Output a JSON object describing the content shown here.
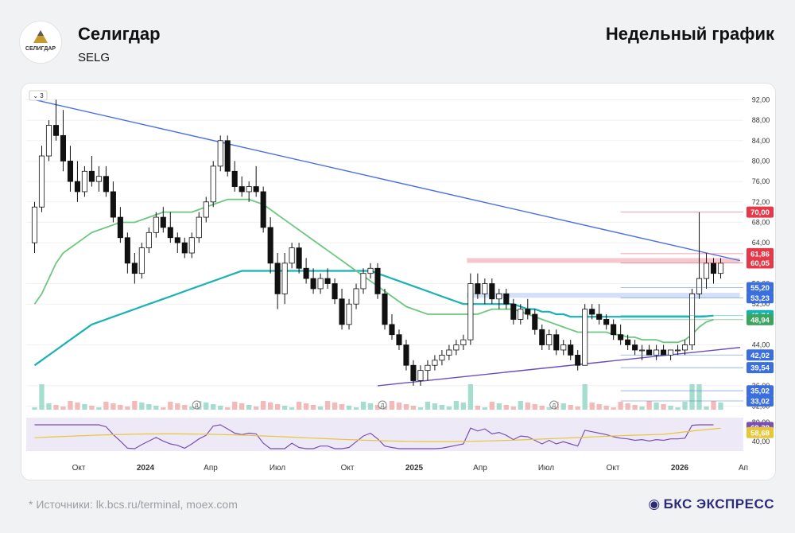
{
  "header": {
    "logo_text": "СЕЛИГДАР",
    "company": "Селигдар",
    "ticker": "SELG",
    "chart_type": "Недельный график",
    "interval_badge": "3"
  },
  "footer": {
    "sources": "*  Источники: lk.bcs.ru/terminal, moex.com",
    "brand": "БКС ЭКСПРЕСС"
  },
  "chart_data": {
    "type": "candlestick",
    "title": "Селигдар (SELG) — Недельный график",
    "y_ticks": [
      "92,00",
      "88,00",
      "84,00",
      "80,00",
      "76,00",
      "72,00",
      "68,00",
      "64,00",
      "56,00",
      "52,00",
      "44,00",
      "36,00",
      "32,00"
    ],
    "ylim": [
      31,
      93
    ],
    "x_ticks": [
      "Окт",
      "2024",
      "Апр",
      "Июл",
      "Окт",
      "2025",
      "Апр",
      "Июл",
      "Окт",
      "2026",
      "Ап"
    ],
    "price_labels": [
      {
        "text": "70,00",
        "value": 70.0,
        "color": "#e5394a"
      },
      {
        "text": "61,86",
        "value": 61.86,
        "color": "#e5394a"
      },
      {
        "text": "60,05",
        "value": 60.05,
        "color": "#e5394a"
      },
      {
        "text": "55,20",
        "value": 55.2,
        "color": "#3b6fe0"
      },
      {
        "text": "53,23",
        "value": 53.23,
        "color": "#3b6fe0"
      },
      {
        "text": "49,74",
        "value": 49.74,
        "color": "#16b2b4"
      },
      {
        "text": "48,94",
        "value": 48.94,
        "color": "#3aa55c"
      },
      {
        "text": "42,02",
        "value": 42.02,
        "color": "#3b6fe0"
      },
      {
        "text": "39,54",
        "value": 39.54,
        "color": "#3b6fe0"
      },
      {
        "text": "35,02",
        "value": 35.02,
        "color": "#3b6fe0"
      },
      {
        "text": "33,02",
        "value": 33.02,
        "color": "#3b6fe0"
      }
    ],
    "rsi": {
      "ticks": [
        "80,00",
        "40,00"
      ],
      "labels": [
        {
          "text": "69,38",
          "value": 69.38,
          "color": "#7a4fb4"
        },
        {
          "text": "58,68",
          "value": 58.68,
          "color": "#e8c63a"
        }
      ]
    },
    "dividend_markers": [
      "Д",
      "Д",
      "Д"
    ],
    "candles": [
      {
        "o": 64,
        "h": 72,
        "l": 62,
        "c": 71
      },
      {
        "o": 71,
        "h": 83,
        "l": 70,
        "c": 81
      },
      {
        "o": 81,
        "h": 88,
        "l": 80,
        "c": 87
      },
      {
        "o": 87,
        "h": 92,
        "l": 84,
        "c": 85
      },
      {
        "o": 85,
        "h": 90,
        "l": 78,
        "c": 80
      },
      {
        "o": 80,
        "h": 83,
        "l": 74,
        "c": 76
      },
      {
        "o": 76,
        "h": 80,
        "l": 72,
        "c": 74
      },
      {
        "o": 74,
        "h": 79,
        "l": 73,
        "c": 78
      },
      {
        "o": 78,
        "h": 81,
        "l": 75,
        "c": 76
      },
      {
        "o": 76,
        "h": 79,
        "l": 74,
        "c": 77
      },
      {
        "o": 77,
        "h": 79,
        "l": 73,
        "c": 74
      },
      {
        "o": 74,
        "h": 76,
        "l": 68,
        "c": 69
      },
      {
        "o": 69,
        "h": 71,
        "l": 64,
        "c": 65
      },
      {
        "o": 65,
        "h": 66,
        "l": 58,
        "c": 60
      },
      {
        "o": 60,
        "h": 62,
        "l": 56,
        "c": 58
      },
      {
        "o": 58,
        "h": 64,
        "l": 57,
        "c": 63
      },
      {
        "o": 63,
        "h": 67,
        "l": 62,
        "c": 66
      },
      {
        "o": 66,
        "h": 70,
        "l": 65,
        "c": 69
      },
      {
        "o": 69,
        "h": 71,
        "l": 66,
        "c": 67
      },
      {
        "o": 67,
        "h": 70,
        "l": 64,
        "c": 65
      },
      {
        "o": 65,
        "h": 66,
        "l": 62,
        "c": 64
      },
      {
        "o": 64,
        "h": 65,
        "l": 61,
        "c": 62
      },
      {
        "o": 62,
        "h": 66,
        "l": 61,
        "c": 65
      },
      {
        "o": 65,
        "h": 70,
        "l": 64,
        "c": 69
      },
      {
        "o": 69,
        "h": 73,
        "l": 68,
        "c": 72
      },
      {
        "o": 72,
        "h": 80,
        "l": 71,
        "c": 79
      },
      {
        "o": 79,
        "h": 85,
        "l": 78,
        "c": 84
      },
      {
        "o": 84,
        "h": 85,
        "l": 77,
        "c": 78
      },
      {
        "o": 78,
        "h": 80,
        "l": 74,
        "c": 75
      },
      {
        "o": 75,
        "h": 77,
        "l": 73,
        "c": 74
      },
      {
        "o": 74,
        "h": 76,
        "l": 72,
        "c": 75
      },
      {
        "o": 75,
        "h": 79,
        "l": 73,
        "c": 74
      },
      {
        "o": 74,
        "h": 75,
        "l": 66,
        "c": 67
      },
      {
        "o": 67,
        "h": 69,
        "l": 58,
        "c": 60
      },
      {
        "o": 60,
        "h": 62,
        "l": 51,
        "c": 54
      },
      {
        "o": 54,
        "h": 62,
        "l": 52,
        "c": 60
      },
      {
        "o": 60,
        "h": 64,
        "l": 59,
        "c": 63
      },
      {
        "o": 63,
        "h": 64,
        "l": 58,
        "c": 59
      },
      {
        "o": 59,
        "h": 61,
        "l": 56,
        "c": 57
      },
      {
        "o": 57,
        "h": 59,
        "l": 54,
        "c": 55
      },
      {
        "o": 55,
        "h": 58,
        "l": 54,
        "c": 57
      },
      {
        "o": 57,
        "h": 59,
        "l": 55,
        "c": 56
      },
      {
        "o": 56,
        "h": 57,
        "l": 52,
        "c": 53
      },
      {
        "o": 53,
        "h": 55,
        "l": 47,
        "c": 48
      },
      {
        "o": 48,
        "h": 53,
        "l": 47,
        "c": 52
      },
      {
        "o": 52,
        "h": 56,
        "l": 51,
        "c": 55
      },
      {
        "o": 55,
        "h": 59,
        "l": 54,
        "c": 58
      },
      {
        "o": 58,
        "h": 60,
        "l": 57,
        "c": 59
      },
      {
        "o": 59,
        "h": 60,
        "l": 53,
        "c": 54
      },
      {
        "o": 54,
        "h": 55,
        "l": 47,
        "c": 48
      },
      {
        "o": 48,
        "h": 50,
        "l": 45,
        "c": 46
      },
      {
        "o": 46,
        "h": 47,
        "l": 43,
        "c": 44
      },
      {
        "o": 44,
        "h": 45,
        "l": 39,
        "c": 40
      },
      {
        "o": 40,
        "h": 41,
        "l": 36,
        "c": 37
      },
      {
        "o": 37,
        "h": 40,
        "l": 36,
        "c": 39
      },
      {
        "o": 39,
        "h": 41,
        "l": 37,
        "c": 40
      },
      {
        "o": 40,
        "h": 42,
        "l": 39,
        "c": 41
      },
      {
        "o": 41,
        "h": 43,
        "l": 40,
        "c": 42
      },
      {
        "o": 42,
        "h": 44,
        "l": 41,
        "c": 43
      },
      {
        "o": 43,
        "h": 45,
        "l": 42,
        "c": 44
      },
      {
        "o": 44,
        "h": 46,
        "l": 43,
        "c": 45
      },
      {
        "o": 45,
        "h": 58,
        "l": 44,
        "c": 56
      },
      {
        "o": 56,
        "h": 58,
        "l": 53,
        "c": 54
      },
      {
        "o": 54,
        "h": 57,
        "l": 52,
        "c": 56
      },
      {
        "o": 56,
        "h": 57,
        "l": 52,
        "c": 53
      },
      {
        "o": 53,
        "h": 55,
        "l": 51,
        "c": 54
      },
      {
        "o": 54,
        "h": 55,
        "l": 51,
        "c": 52
      },
      {
        "o": 52,
        "h": 53,
        "l": 48,
        "c": 49
      },
      {
        "o": 49,
        "h": 52,
        "l": 48,
        "c": 51
      },
      {
        "o": 51,
        "h": 53,
        "l": 49,
        "c": 50
      },
      {
        "o": 50,
        "h": 51,
        "l": 46,
        "c": 47
      },
      {
        "o": 47,
        "h": 48,
        "l": 43,
        "c": 44
      },
      {
        "o": 44,
        "h": 47,
        "l": 43,
        "c": 46
      },
      {
        "o": 46,
        "h": 47,
        "l": 42,
        "c": 43
      },
      {
        "o": 43,
        "h": 45,
        "l": 42,
        "c": 44
      },
      {
        "o": 44,
        "h": 45,
        "l": 41,
        "c": 42
      },
      {
        "o": 42,
        "h": 43,
        "l": 39,
        "c": 40
      },
      {
        "o": 40,
        "h": 52,
        "l": 40,
        "c": 51
      },
      {
        "o": 51,
        "h": 52,
        "l": 49,
        "c": 50
      },
      {
        "o": 50,
        "h": 52,
        "l": 48,
        "c": 49
      },
      {
        "o": 49,
        "h": 50,
        "l": 47,
        "c": 48
      },
      {
        "o": 48,
        "h": 49,
        "l": 45,
        "c": 46
      },
      {
        "o": 46,
        "h": 48,
        "l": 44,
        "c": 45
      },
      {
        "o": 45,
        "h": 46,
        "l": 43,
        "c": 44
      },
      {
        "o": 44,
        "h": 45,
        "l": 42,
        "c": 43
      },
      {
        "o": 43,
        "h": 44,
        "l": 41,
        "c": 43
      },
      {
        "o": 43,
        "h": 44,
        "l": 42,
        "c": 42
      },
      {
        "o": 42,
        "h": 44,
        "l": 41,
        "c": 43
      },
      {
        "o": 43,
        "h": 44,
        "l": 42,
        "c": 42
      },
      {
        "o": 42,
        "h": 43,
        "l": 41,
        "c": 43
      },
      {
        "o": 43,
        "h": 44,
        "l": 42,
        "c": 43
      },
      {
        "o": 43,
        "h": 45,
        "l": 42,
        "c": 44
      },
      {
        "o": 44,
        "h": 55,
        "l": 43,
        "c": 54
      },
      {
        "o": 54,
        "h": 70,
        "l": 53,
        "c": 57
      },
      {
        "o": 57,
        "h": 62,
        "l": 55,
        "c": 60
      },
      {
        "o": 60,
        "h": 61,
        "l": 56,
        "c": 58
      },
      {
        "o": 58,
        "h": 61,
        "l": 57,
        "c": 60
      }
    ],
    "ma_fast": [
      52,
      54,
      57,
      60,
      62,
      63,
      64,
      65,
      66,
      66.5,
      67,
      67.5,
      68,
      68,
      68,
      68.5,
      69,
      69.5,
      70,
      70,
      70,
      70,
      70,
      70.5,
      71,
      71.5,
      72,
      72.5,
      72.5,
      72.5,
      72.5,
      72,
      71.5,
      70.5,
      69.5,
      68.5,
      67.5,
      66.5,
      65.5,
      64.5,
      63.5,
      62.5,
      61.5,
      60.5,
      59.5,
      58.5,
      57.5,
      56.5,
      55.5,
      54.5,
      53.5,
      52.5,
      51.5,
      51,
      50.5,
      50,
      50,
      50,
      50,
      50,
      50,
      50,
      50,
      50.5,
      51,
      51,
      51,
      51,
      50.5,
      50,
      49.5,
      49,
      48.5,
      48,
      47.5,
      47,
      46.5,
      46.5,
      46.5,
      46.5,
      46.5,
      46,
      46,
      45.5,
      45.5,
      45,
      45,
      45,
      44.5,
      44.5,
      44.5,
      45,
      46,
      47.5,
      48.5,
      48.94
    ],
    "ma_slow": [
      40,
      41,
      42,
      43,
      44,
      45,
      46,
      47,
      48,
      48.5,
      49,
      49.5,
      50,
      50.5,
      51,
      51.5,
      52,
      52.5,
      53,
      53.5,
      54,
      54.5,
      55,
      55.5,
      56,
      56.5,
      57,
      57.5,
      58,
      58.5,
      58.5,
      58.5,
      58.5,
      58.5,
      58.5,
      58.5,
      58.5,
      58.5,
      58.5,
      58.5,
      58.5,
      58.5,
      58.5,
      58.5,
      58.5,
      58.5,
      58.5,
      58.5,
      58,
      57.5,
      57,
      56.5,
      56,
      55.5,
      55,
      54.5,
      54,
      53.5,
      53,
      52.5,
      52,
      52,
      52,
      52,
      52,
      52,
      52,
      52,
      51.5,
      51,
      51,
      50.5,
      50.5,
      50,
      50,
      49.5,
      49.5,
      49.5,
      49.5,
      49.5,
      49.5,
      49.5,
      49.5,
      49.5,
      49.5,
      49.5,
      49.5,
      49.5,
      49.5,
      49.5,
      49.5,
      49.5,
      49.5,
      49.5,
      49.6,
      49.74
    ],
    "resistance_line": {
      "from": [
        92,
        0
      ],
      "to": [
        60.5,
        95
      ]
    },
    "support_line": {
      "from": [
        36,
        48
      ],
      "to": [
        43.5,
        95
      ]
    },
    "zones": [
      {
        "label": "resistance-zone",
        "from": 60.05,
        "to": 61.0,
        "color": "#f4b9bf"
      },
      {
        "label": "support-zone",
        "from": 53.23,
        "to": 54.2,
        "color": "#c9d8f6"
      }
    ]
  }
}
